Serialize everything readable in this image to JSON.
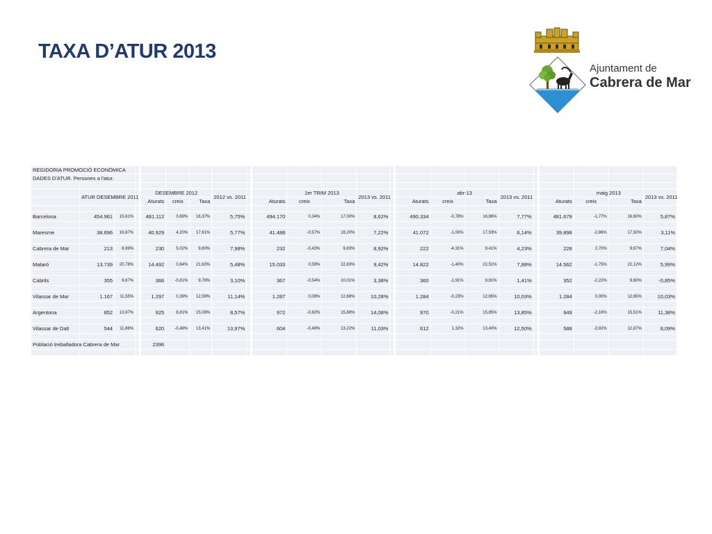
{
  "title": "TAXA D’ATUR 2013",
  "logo": {
    "org_line1": "Ajuntament de",
    "org_line2": "Cabrera de Mar",
    "icon": "coat-of-arms"
  },
  "table": {
    "head1": "REGIDORIA PROMOCIÓ ECONÒMICA",
    "head2": "DADES D'ATUR. Persones a l'atur.",
    "group": {
      "atur": "ATUR DESEMBRE 2011",
      "des": "DESEMBRE 2012",
      "vs1": "2012 vs. 2011",
      "trim": "1er TRIM 2013",
      "vs2": "2013 vs. 2011",
      "abr": "abr-13",
      "vs3": "2013 vs. 2011",
      "maig": "maig 2013",
      "vs4": "2013 vs. 2011"
    },
    "sub": {
      "aturats": "Aturats",
      "creix": "creix",
      "taxa": "Taxa"
    },
    "rows": [
      {
        "name": "Barcelona",
        "a11": "454.961",
        "t11": "15,61%",
        "d12": "481.112",
        "d12c": "0,69%",
        "d12t": "16,37%",
        "v12": "5,75%",
        "q1": "494.170",
        "q1c": "0,34%",
        "q1t": "17,00%",
        "v13a": "8,62%",
        "ab": "490.334",
        "abc": "-0,78%",
        "abt": "16,86%",
        "v13b": "7,77%",
        "mg": "481.679",
        "mgc": "-1,77%",
        "mgt": "16,60%",
        "v13c": "5,87%"
      },
      {
        "name": "Maresme",
        "a11": "38.696",
        "t11": "16,87%",
        "d12": "40.929",
        "d12c": "4,20%",
        "d12t": "17,61%",
        "v12": "5,77%",
        "q1": "41.488",
        "q1c": "-0,57%",
        "q1t": "18,20%",
        "v13a": "7,22%",
        "ab": "41.072",
        "abc": "-1,00%",
        "abt": "17,93%",
        "v13b": "6,14%",
        "mg": "39.898",
        "mgc": "-2,86%",
        "mgt": "17,50%",
        "v13c": "3,11%"
      },
      {
        "name": "Cabrera de Mar",
        "a11": "213",
        "t11": "8,99%",
        "d12": "230",
        "d12c": "5,02%",
        "d12t": "9,60%",
        "v12": "7,98%",
        "q1": "232",
        "q1c": "-0,43%",
        "q1t": "9,83%",
        "v13a": "8,92%",
        "ab": "222",
        "abc": "-4,31%",
        "abt": "9,41%",
        "v13b": "4,23%",
        "mg": "228",
        "mgc": "2,70%",
        "mgt": "9,67%",
        "v13c": "7,04%"
      },
      {
        "name": "Mataró",
        "a11": "13.739",
        "t11": "20,78%",
        "d12": "14.492",
        "d12c": "0,64%",
        "d12t": "21,63%",
        "v12": "5,48%",
        "q1": "15.033",
        "q1c": "0,59%",
        "q1t": "22,83%",
        "v13a": "9,42%",
        "ab": "14.822",
        "abc": "-1,40%",
        "abt": "22,51%",
        "v13b": "7,88%",
        "mg": "14.562",
        "mgc": "-1,75%",
        "mgt": "22,12%",
        "v13c": "5,99%"
      },
      {
        "name": "Cabrils",
        "a11": "355",
        "t11": "9,67%",
        "d12": "366",
        "d12c": "-0,81%",
        "d12t": "9,78%",
        "v12": "3,10%",
        "q1": "367",
        "q1c": "-0,54%",
        "q1t": "10,01%",
        "v13a": "3,38%",
        "ab": "360",
        "abc": "-1,91%",
        "abt": "9,81%",
        "v13b": "1,41%",
        "mg": "352",
        "mgc": "-2,22%",
        "mgt": "9,60%",
        "v13c": "-0,85%"
      },
      {
        "name": "Vilassar de Mar",
        "a11": "1.167",
        "t11": "11,55%",
        "d12": "1.297",
        "d12c": "0,39%",
        "d12t": "12,59%",
        "v12": "11,14%",
        "q1": "1.287",
        "q1c": "0,08%",
        "q1t": "12,68%",
        "v13a": "10,28%",
        "ab": "1.284",
        "abc": "-0,23%",
        "abt": "12,65%",
        "v13b": "10,03%",
        "mg": "1.284",
        "mgc": "0,00%",
        "mgt": "12,65%",
        "v13c": "10,03%"
      },
      {
        "name": "Argentona",
        "a11": "852",
        "t11": "13,97%",
        "d12": "925",
        "d12c": "6,81%",
        "d12t": "15,08%",
        "v12": "8,57%",
        "q1": "972",
        "q1c": "-0,82%",
        "q1t": "15,88%",
        "v13a": "14,08%",
        "ab": "970",
        "abc": "-0,21%",
        "abt": "15,85%",
        "v13b": "13,85%",
        "mg": "949",
        "mgc": "-2,16%",
        "mgt": "15,51%",
        "v13c": "11,38%"
      },
      {
        "name": "Vilassar de Dalt",
        "a11": "544",
        "t11": "11,88%",
        "d12": "620",
        "d12c": "-0,48%",
        "d12t": "13,41%",
        "v12": "13,97%",
        "q1": "604",
        "q1c": "-0,49%",
        "q1t": "13,22%",
        "v13a": "11,03%",
        "ab": "612",
        "abc": "1,32%",
        "abt": "13,40%",
        "v13b": "12,50%",
        "mg": "588",
        "mgc": "-3,92%",
        "mgt": "12,87%",
        "v13c": "8,09%"
      }
    ],
    "footer_label": "Població treballadora Cabrera de Mar",
    "footer_value": "2396"
  }
}
